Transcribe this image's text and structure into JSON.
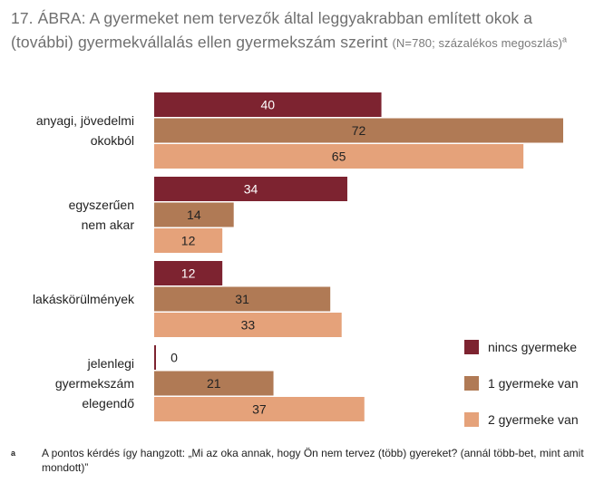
{
  "title": {
    "main": "17. ÁBRA: A gyermeket nem tervezők által leggyakrabban említett okok a (további) gyermekvállalás ellen gyermekszám szerint",
    "note_part1": "(N=780; százalékos",
    "note_part2": "megoszlás)",
    "note_marker": "a"
  },
  "colors": {
    "nincs": "#7d2330",
    "egy": "#b07a55",
    "ketto": "#e5a27a"
  },
  "chart_data": {
    "type": "bar",
    "orientation": "horizontal",
    "categories": [
      [
        "anyagi, jövedelmi",
        "okokból"
      ],
      [
        "egyszerűen",
        "nem akar"
      ],
      [
        "lakáskörülmények"
      ],
      [
        "jelenlegi",
        "gyermekszám",
        "elegendő"
      ]
    ],
    "series": [
      {
        "name": "nincs gyermeke",
        "values": [
          40,
          34,
          12,
          0
        ]
      },
      {
        "name": "1 gyermeke van",
        "values": [
          72,
          14,
          31,
          21
        ]
      },
      {
        "name": "2 gyermeke van",
        "values": [
          65,
          12,
          33,
          37
        ]
      }
    ],
    "xlim": [
      0,
      72
    ],
    "legend_position": "bottom-right",
    "grid": false
  },
  "footnote": {
    "marker": "a",
    "text": "A pontos kérdés így hangzott: „Mi az oka annak, hogy Ön nem tervez (több) gyereket? (annál több-bet, mint amit mondott)”"
  }
}
